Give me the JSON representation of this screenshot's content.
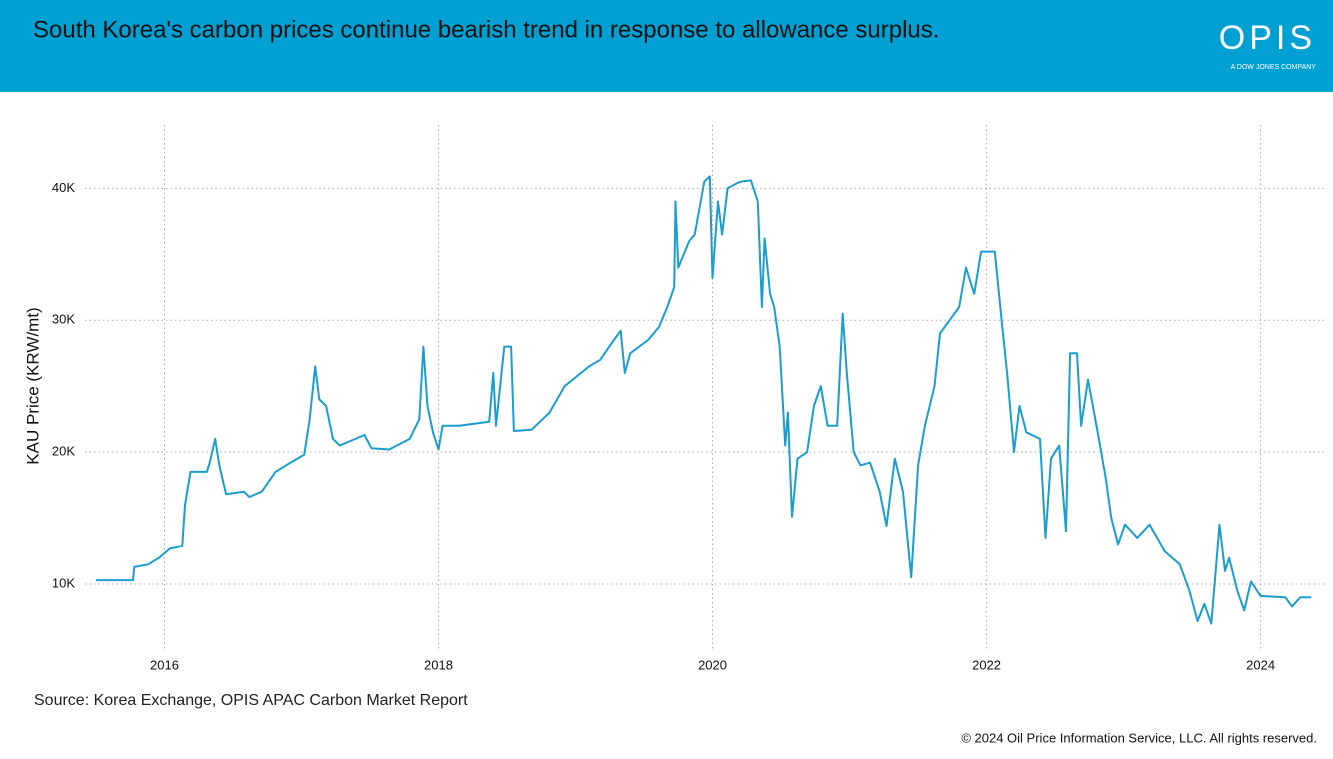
{
  "chart_data": {
    "type": "line",
    "title": "South Korea's carbon prices continue bearish trend in response to allowance surplus.",
    "y_label": "KAU Price (KRW/mt)",
    "source": "Source: Korea Exchange, OPIS APAC Carbon Market Report",
    "copyright": "© 2024 Oil Price Information Service, LLC. All rights reserved.",
    "logo": {
      "name": "OPIS",
      "tagline": "A DOW JONES COMPANY"
    },
    "xlim": [
      2015.42,
      2024.47
    ],
    "xticks": [
      2016,
      2018,
      2020,
      2022,
      2024
    ],
    "ylim": [
      5000,
      44800
    ],
    "yticks": [
      {
        "value": 10000,
        "label": "10K"
      },
      {
        "value": 20000,
        "label": "20K"
      },
      {
        "value": 30000,
        "label": "30K"
      },
      {
        "value": 40000,
        "label": "40K"
      }
    ],
    "grid": true,
    "series": [
      {
        "name": "KAU",
        "color": "#1a9dcf",
        "x": [
          2015.5,
          2015.77,
          2015.78,
          2015.88,
          2015.96,
          2016.04,
          2016.13,
          2016.15,
          2016.19,
          2016.31,
          2016.33,
          2016.37,
          2016.4,
          2016.45,
          2016.58,
          2016.62,
          2016.71,
          2016.81,
          2016.92,
          2017.02,
          2017.06,
          2017.1,
          2017.13,
          2017.18,
          2017.23,
          2017.28,
          2017.46,
          2017.51,
          2017.64,
          2017.79,
          2017.86,
          2017.89,
          2017.92,
          2017.96,
          2018.0,
          2018.03,
          2018.15,
          2018.37,
          2018.4,
          2018.42,
          2018.48,
          2018.53,
          2018.55,
          2018.68,
          2018.81,
          2018.92,
          2019.1,
          2019.18,
          2019.28,
          2019.33,
          2019.36,
          2019.4,
          2019.53,
          2019.61,
          2019.67,
          2019.72,
          2019.73,
          2019.75,
          2019.83,
          2019.87,
          2019.94,
          2019.98,
          2020.0,
          2020.04,
          2020.07,
          2020.11,
          2020.2,
          2020.28,
          2020.33,
          2020.36,
          2020.38,
          2020.42,
          2020.45,
          2020.49,
          2020.53,
          2020.55,
          2020.58,
          2020.62,
          2020.69,
          2020.74,
          2020.79,
          2020.84,
          2020.91,
          2020.95,
          2020.98,
          2021.03,
          2021.08,
          2021.15,
          2021.22,
          2021.27,
          2021.33,
          2021.39,
          2021.45,
          2021.5,
          2021.55,
          2021.62,
          2021.66,
          2021.73,
          2021.8,
          2021.85,
          2021.91,
          2021.96,
          2022.06,
          2022.11,
          2022.15,
          2022.2,
          2022.24,
          2022.29,
          2022.39,
          2022.43,
          2022.47,
          2022.53,
          2022.58,
          2022.61,
          2022.66,
          2022.69,
          2022.74,
          2022.82,
          2022.87,
          2022.91,
          2022.96,
          2023.01,
          2023.1,
          2023.19,
          2023.3,
          2023.41,
          2023.48,
          2023.54,
          2023.59,
          2023.64,
          2023.7,
          2023.74,
          2023.77,
          2023.83,
          2023.88,
          2023.93,
          2024.0,
          2024.18,
          2024.23,
          2024.29,
          2024.37
        ],
        "values": [
          10300,
          10300,
          11300,
          11500,
          12000,
          12700,
          12900,
          16000,
          18500,
          18500,
          19200,
          21000,
          19000,
          16800,
          17000,
          16600,
          17000,
          18500,
          19200,
          19800,
          22500,
          26500,
          24000,
          23500,
          21000,
          20500,
          21300,
          20300,
          20200,
          21000,
          22500,
          28000,
          23500,
          21500,
          20200,
          22000,
          22000,
          22300,
          26000,
          22000,
          28000,
          28000,
          21600,
          21700,
          23000,
          25000,
          26500,
          27000,
          28500,
          29200,
          26000,
          27500,
          28500,
          29500,
          31000,
          32500,
          39000,
          34000,
          36000,
          36500,
          40500,
          40900,
          33200,
          39000,
          36500,
          40000,
          40500,
          40600,
          39000,
          31000,
          36200,
          32000,
          31000,
          28000,
          20500,
          23000,
          15100,
          19500,
          20000,
          23500,
          25000,
          22000,
          22000,
          30500,
          26000,
          20000,
          19000,
          19200,
          17000,
          14400,
          19500,
          17000,
          10500,
          19000,
          22000,
          25000,
          29000,
          30000,
          31000,
          34000,
          32000,
          35200,
          35200,
          30000,
          26000,
          20000,
          23500,
          21500,
          21000,
          13500,
          19500,
          20500,
          14000,
          27500,
          27500,
          22000,
          25500,
          21000,
          18000,
          15000,
          13000,
          14500,
          13500,
          14500,
          12500,
          11500,
          9500,
          7200,
          8500,
          7000,
          14500,
          11000,
          12000,
          9500,
          8000,
          10200,
          9100,
          9000,
          8300,
          9000,
          9000
        ]
      }
    ]
  }
}
